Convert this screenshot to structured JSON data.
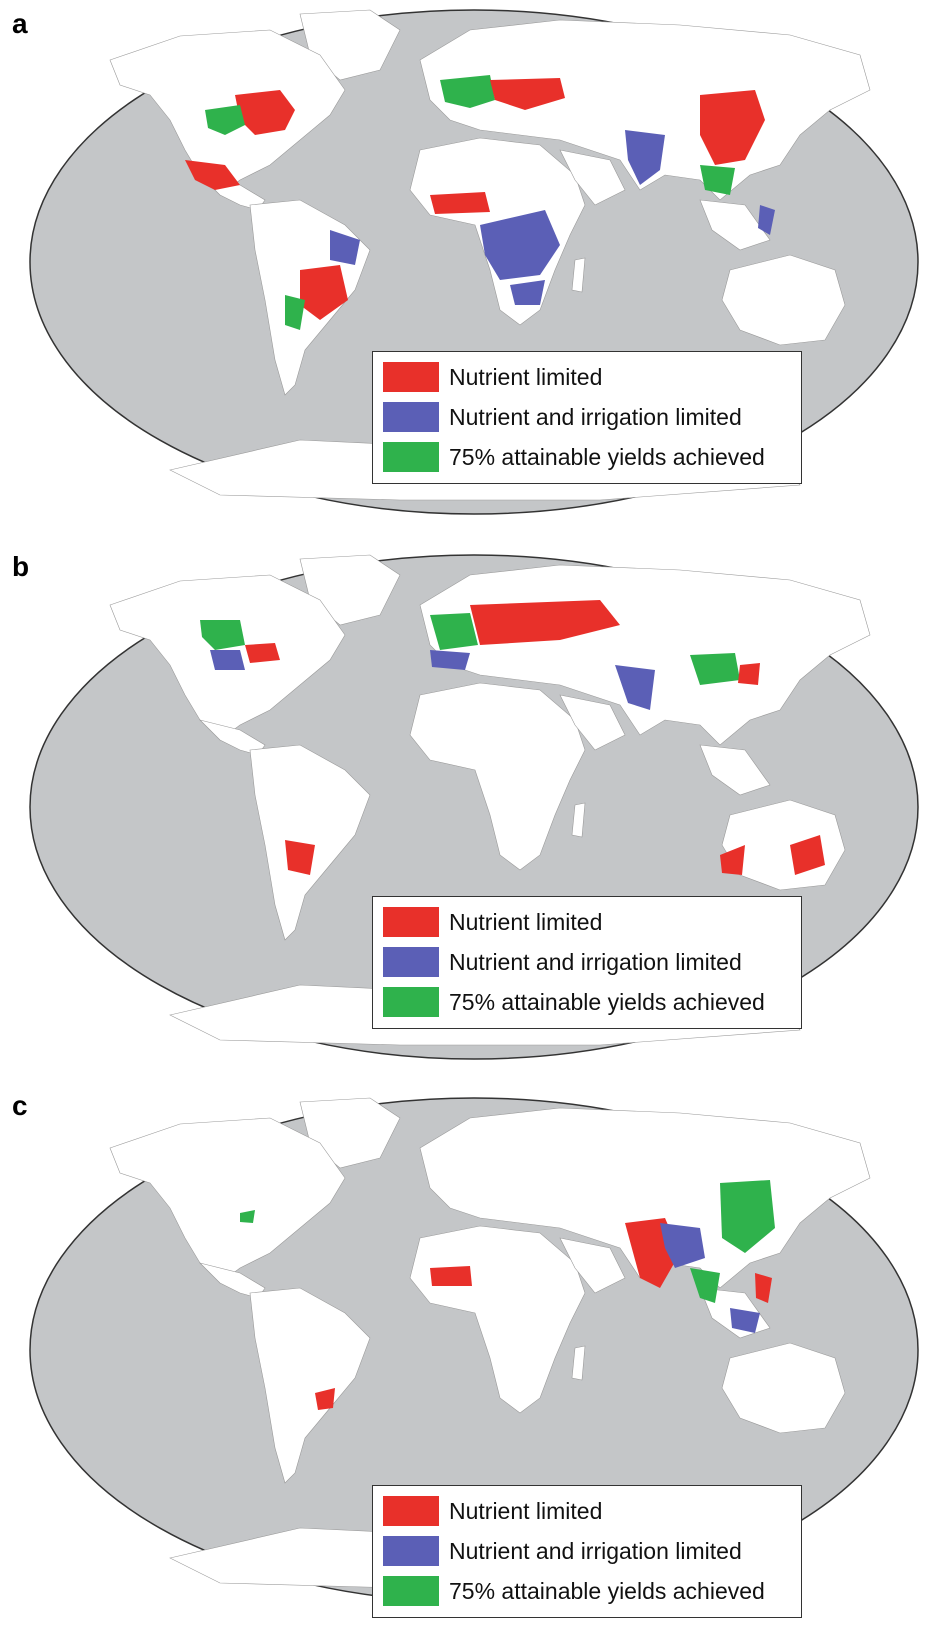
{
  "colors": {
    "nutrient_limited": "#e8302a",
    "nutrient_irrigation_limited": "#5b5fb6",
    "attainable": "#2fb24c",
    "ocean": "#c4c6c8",
    "land": "#ffffff"
  },
  "panels": [
    {
      "letter": "a",
      "legend": [
        {
          "label": "Nutrient limited",
          "color_key": "nutrient_limited"
        },
        {
          "label": "Nutrient and irrigation limited",
          "color_key": "nutrient_irrigation_limited"
        },
        {
          "label": "75% attainable yields achieved",
          "color_key": "attainable"
        }
      ]
    },
    {
      "letter": "b",
      "legend": [
        {
          "label": "Nutrient limited",
          "color_key": "nutrient_limited"
        },
        {
          "label": "Nutrient and irrigation limited",
          "color_key": "nutrient_irrigation_limited"
        },
        {
          "label": "75% attainable yields achieved",
          "color_key": "attainable"
        }
      ]
    },
    {
      "letter": "c",
      "legend": [
        {
          "label": "Nutrient limited",
          "color_key": "nutrient_limited"
        },
        {
          "label": "Nutrient and irrigation limited",
          "color_key": "nutrient_irrigation_limited"
        },
        {
          "label": "75% attainable yields achieved",
          "color_key": "attainable"
        }
      ]
    }
  ]
}
